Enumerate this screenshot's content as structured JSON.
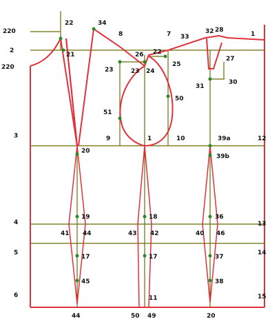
{
  "diagram": {
    "colors": {
      "construction": "#6b6b00",
      "outline": "#e0303a",
      "points": "#2a8a2a",
      "text": "#111111"
    },
    "labels": {
      "l220a": "220",
      "l2": "2",
      "l220b": "220",
      "l22": "22",
      "l21": "21",
      "l34": "34",
      "l8": "8",
      "l7": "7",
      "l33": "33",
      "l32": "32",
      "l28": "28",
      "l1": "1",
      "l26": "26",
      "l23a": "23",
      "l24": "24",
      "l25": "25",
      "l27": "27",
      "l23b": "23",
      "l31": "31",
      "l30": "30",
      "l50": "50",
      "l51": "51",
      "l3": "3",
      "l9": "9",
      "l1b": "1",
      "l10": "10",
      "l39a": "39a",
      "l12": "12",
      "l20": "20",
      "l39b": "39b",
      "l4": "4",
      "l13": "13",
      "l19": "19",
      "l18": "18",
      "l36": "36",
      "l41": "41",
      "l44": "44",
      "l43": "43",
      "l42": "42",
      "l40": "40",
      "l46": "46",
      "l5": "5",
      "l14": "14",
      "l17": "17",
      "l17b": "17",
      "l37": "37",
      "l6": "6",
      "l15": "15",
      "l45": "45",
      "l38": "38",
      "l11": "11",
      "b44": "44",
      "b50": "50",
      "b49": "49",
      "b20": "20"
    }
  }
}
